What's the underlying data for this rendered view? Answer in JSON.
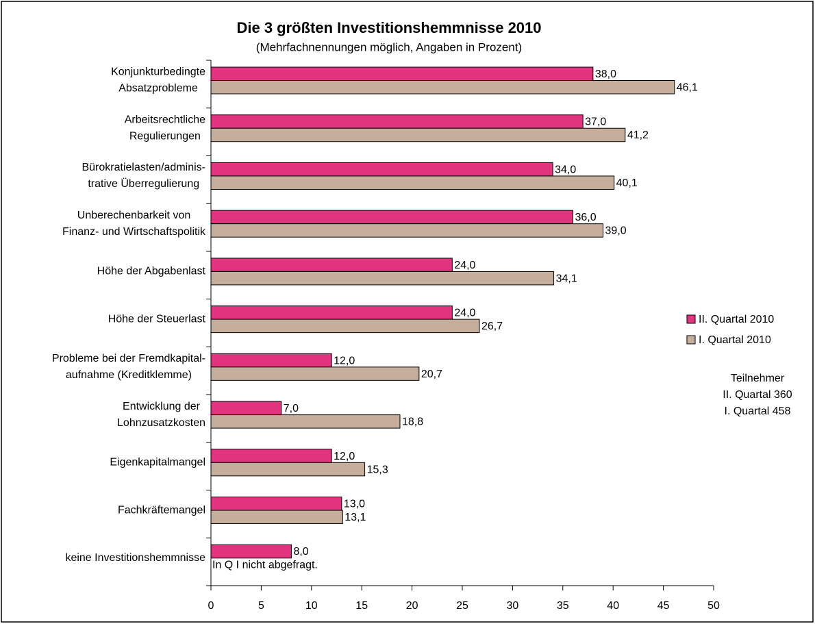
{
  "chart_data": {
    "type": "hbar",
    "title": "Die 3 größten Investitionshemmnisse 2010",
    "subtitle": "(Mehrfachnennungen möglich, Angaben in Prozent)",
    "categories": [
      [
        "Konjunkturbedingte",
        "Absatzprobleme"
      ],
      [
        "Arbeitsrechtliche",
        "Regulierungen"
      ],
      [
        "Bürokratielasten/adminis-",
        "trative Überregulierung"
      ],
      [
        "Unberechenbarkeit von",
        "Finanz- und Wirtschaftspolitik"
      ],
      [
        "Höhe der Abgabenlast"
      ],
      [
        "Höhe der Steuerlast"
      ],
      [
        "Probleme bei der Fremdkapital-",
        "aufnahme (Kreditklemme)"
      ],
      [
        "Entwicklung der",
        "Lohnzusatzkosten"
      ],
      [
        "Eigenkapitalmangel"
      ],
      [
        "Fachkräftemangel"
      ],
      [
        "keine Investitionshemmnisse"
      ]
    ],
    "series": [
      {
        "name": "II. Quartal 2010",
        "color": "#e2337f",
        "values": [
          38,
          37,
          34,
          36,
          24,
          24,
          12,
          7,
          12,
          13,
          8
        ],
        "value_labels": [
          "38,0",
          "37,0",
          "34,0",
          "36,0",
          "24,0",
          "24,0",
          "12,0",
          "7,0",
          "12,0",
          "13,0",
          "8,0"
        ]
      },
      {
        "name": "I. Quartal 2010",
        "color": "#c6ae9c",
        "values": [
          46.1,
          41.2,
          40.1,
          39,
          34.1,
          26.7,
          20.7,
          18.8,
          15.3,
          13.1,
          null
        ],
        "value_labels": [
          "46,1",
          "41,2",
          "40,1",
          "39,0",
          "34,1",
          "26,7",
          "20,7",
          "18,8",
          "15,3",
          "13,1",
          null
        ]
      }
    ],
    "xlim": [
      0,
      50
    ],
    "xticks": [
      0,
      5,
      10,
      15,
      20,
      25,
      30,
      35,
      40,
      45,
      50
    ],
    "legend": "right",
    "annotation": "In Q I nicht abgefragt.",
    "notes": [
      "Teilnehmer",
      "II. Quartal 360",
      "I. Quartal 458"
    ]
  }
}
